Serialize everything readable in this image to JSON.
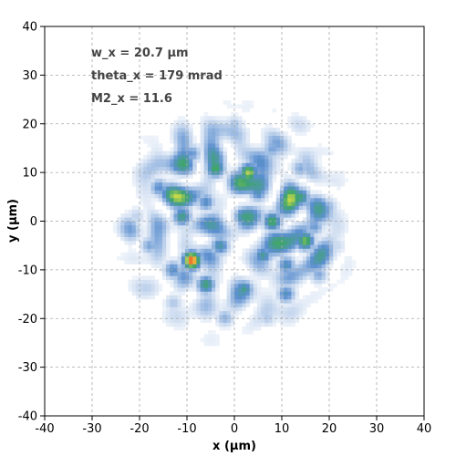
{
  "chart_data": {
    "type": "heatmap",
    "title": "",
    "xlabel": "x (µm)",
    "ylabel": "y (µm)",
    "xlim": [
      -40,
      40
    ],
    "ylim": [
      -40,
      40
    ],
    "x_ticks": [
      -40,
      -30,
      -20,
      -10,
      0,
      10,
      20,
      30,
      40
    ],
    "y_ticks": [
      -40,
      -30,
      -20,
      -10,
      0,
      10,
      20,
      30,
      40
    ],
    "grid": true,
    "annotations": [
      "w_x = 20.7 µm",
      "theta_x = 179 mrad",
      "M2_x = 11.6"
    ],
    "colormap": [
      "#ffffff",
      "#c9d9ef",
      "#5b8fcf",
      "#3da56a",
      "#c6d84a",
      "#f3a23a",
      "#e53020"
    ],
    "beam_center": [
      0,
      0
    ],
    "beam_radius": 23,
    "hot_spots": [
      {
        "x": -9,
        "y": -8,
        "v": 1.0
      },
      {
        "x": -4,
        "y": 11,
        "v": 0.6
      },
      {
        "x": 3,
        "y": 10,
        "v": 0.72
      },
      {
        "x": 15,
        "y": -4,
        "v": 0.7
      },
      {
        "x": 8,
        "y": 0,
        "v": 0.58
      },
      {
        "x": 14,
        "y": 5,
        "v": 0.55
      },
      {
        "x": -6,
        "y": -13,
        "v": 0.55
      },
      {
        "x": 2,
        "y": -14,
        "v": 0.5
      },
      {
        "x": 11,
        "y": -15,
        "v": 0.48
      },
      {
        "x": -11,
        "y": 1,
        "v": 0.5
      },
      {
        "x": 2,
        "y": 1,
        "v": 0.5
      },
      {
        "x": -16,
        "y": 7,
        "v": 0.4
      },
      {
        "x": 18,
        "y": -11,
        "v": 0.45
      },
      {
        "x": -3,
        "y": -5,
        "v": 0.42
      },
      {
        "x": 6,
        "y": -7,
        "v": 0.45
      },
      {
        "x": -18,
        "y": -5,
        "v": 0.35
      },
      {
        "x": 20,
        "y": 3,
        "v": 0.35
      },
      {
        "x": -9,
        "y": 14,
        "v": 0.35
      },
      {
        "x": 8,
        "y": 15,
        "v": 0.32
      },
      {
        "x": -2,
        "y": -20,
        "v": 0.35
      },
      {
        "x": 7,
        "y": -20,
        "v": 0.3
      },
      {
        "x": -13,
        "y": -17,
        "v": 0.32
      },
      {
        "x": 14,
        "y": 11,
        "v": 0.3
      },
      {
        "x": -21,
        "y": 1,
        "v": 0.25
      },
      {
        "x": 22,
        "y": -5,
        "v": 0.28
      },
      {
        "x": 0,
        "y": 20,
        "v": 0.28
      },
      {
        "x": 5,
        "y": 6,
        "v": 0.38
      },
      {
        "x": -6,
        "y": 4,
        "v": 0.35
      },
      {
        "x": 11,
        "y": -9,
        "v": 0.4
      },
      {
        "x": -13,
        "y": -10,
        "v": 0.4
      },
      {
        "x": 17,
        "y": -1,
        "v": 0.35
      }
    ]
  }
}
